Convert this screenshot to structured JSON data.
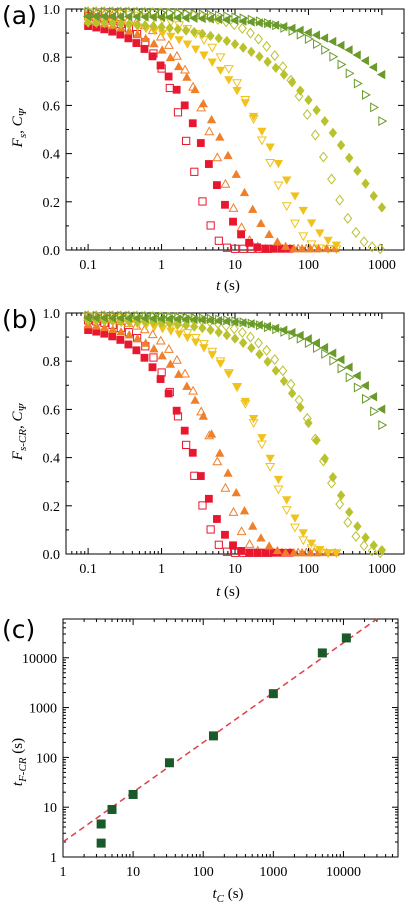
{
  "colors": {
    "red": "#e8162e",
    "orange": "#f07f2a",
    "yellow": "#f0c21d",
    "olive": "#b9c12d",
    "green": "#6a9a2a",
    "darkgreen": "#1a5a2a",
    "fitline": "#e0404a"
  },
  "chart_data": [
    {
      "type": "scatter",
      "panel_label": "(a)",
      "xlabel_italic": "t",
      "xlabel_rest": " (s)",
      "ylabel": "F_s, C_Ψ",
      "ylabel_parts": [
        "F",
        "s",
        ", C",
        "Ψ"
      ],
      "x_scale": "log",
      "xlim": [
        0.05,
        2000
      ],
      "ylim": [
        0,
        1.0
      ],
      "x_ticks": [
        "0.1",
        "1",
        "10",
        "100",
        "1000"
      ],
      "y_ticks": [
        "0.0",
        "0.2",
        "0.4",
        "0.6",
        "0.8",
        "1.0"
      ],
      "series": [
        {
          "color": "red",
          "marker": "square",
          "filled": true,
          "t_start": 0.1,
          "t_end": 55,
          "tau": 4.5,
          "beta": 1.0,
          "a": 0.95
        },
        {
          "color": "red",
          "marker": "square",
          "filled": false,
          "t_start": 0.1,
          "t_end": 28,
          "tau": 2.6,
          "beta": 1.4,
          "a": 0.98
        },
        {
          "color": "orange",
          "marker": "triangle-up",
          "filled": true,
          "t_start": 0.1,
          "t_end": 230,
          "tau": 9,
          "beta": 0.85,
          "a": 0.97
        },
        {
          "color": "orange",
          "marker": "triangle-up",
          "filled": false,
          "t_start": 0.1,
          "t_end": 120,
          "tau": 6,
          "beta": 1.2,
          "a": 0.99
        },
        {
          "color": "yellow",
          "marker": "triangle-down",
          "filled": true,
          "t_start": 0.1,
          "t_end": 240,
          "tau": 40,
          "beta": 0.75,
          "a": 0.96
        },
        {
          "color": "yellow",
          "marker": "triangle-down",
          "filled": false,
          "t_start": 0.1,
          "t_end": 240,
          "tau": 30,
          "beta": 1.0,
          "a": 0.99
        },
        {
          "color": "olive",
          "marker": "diamond",
          "filled": true,
          "t_start": 0.1,
          "t_end": 1000,
          "tau": 420,
          "beta": 0.6,
          "a": 0.95
        },
        {
          "color": "olive",
          "marker": "diamond",
          "filled": false,
          "t_start": 0.1,
          "t_end": 950,
          "tau": 170,
          "beta": 1.0,
          "a": 0.99
        },
        {
          "color": "green",
          "marker": "triangle-left",
          "filled": true,
          "t_start": 0.1,
          "t_end": 1000,
          "tau": 8000,
          "beta": 0.6,
          "a": 0.97
        },
        {
          "color": "green",
          "marker": "triangle-right",
          "filled": false,
          "t_start": 0.1,
          "t_end": 1000,
          "tau": 2000,
          "beta": 0.7,
          "a": 0.99
        }
      ]
    },
    {
      "type": "scatter",
      "panel_label": "(b)",
      "xlabel_italic": "t",
      "xlabel_rest": " (s)",
      "ylabel": "F_s-CR, C_Ψ",
      "ylabel_parts": [
        "F",
        "s-CR",
        ", C",
        "Ψ"
      ],
      "x_scale": "log",
      "xlim": [
        0.05,
        2000
      ],
      "ylim": [
        0,
        1.0
      ],
      "x_ticks": [
        "0.1",
        "1",
        "10",
        "100",
        "1000"
      ],
      "y_ticks": [
        "0.0",
        "0.2",
        "0.4",
        "0.6",
        "0.8",
        "1.0"
      ],
      "series": [
        {
          "color": "red",
          "marker": "square",
          "filled": true,
          "t_start": 0.1,
          "t_end": 55,
          "tau": 3.2,
          "beta": 1.1,
          "a": 0.95
        },
        {
          "color": "red",
          "marker": "square",
          "filled": false,
          "t_start": 0.1,
          "t_end": 28,
          "tau": 2.6,
          "beta": 1.4,
          "a": 0.98
        },
        {
          "color": "orange",
          "marker": "triangle-up",
          "filled": true,
          "t_start": 0.1,
          "t_end": 230,
          "tau": 7.5,
          "beta": 0.9,
          "a": 0.97
        },
        {
          "color": "orange",
          "marker": "triangle-up",
          "filled": false,
          "t_start": 0.1,
          "t_end": 120,
          "tau": 6,
          "beta": 1.2,
          "a": 0.99
        },
        {
          "color": "yellow",
          "marker": "triangle-down",
          "filled": true,
          "t_start": 0.1,
          "t_end": 240,
          "tau": 34,
          "beta": 0.95,
          "a": 0.97
        },
        {
          "color": "yellow",
          "marker": "triangle-down",
          "filled": false,
          "t_start": 0.1,
          "t_end": 240,
          "tau": 30,
          "beta": 1.0,
          "a": 0.99
        },
        {
          "color": "olive",
          "marker": "diamond",
          "filled": true,
          "t_start": 0.1,
          "t_end": 1000,
          "tau": 190,
          "beta": 0.85,
          "a": 0.97
        },
        {
          "color": "olive",
          "marker": "diamond",
          "filled": false,
          "t_start": 0.1,
          "t_end": 950,
          "tau": 170,
          "beta": 1.0,
          "a": 0.99
        },
        {
          "color": "green",
          "marker": "triangle-left",
          "filled": true,
          "t_start": 0.1,
          "t_end": 1000,
          "tau": 2700,
          "beta": 0.72,
          "a": 0.98
        },
        {
          "color": "green",
          "marker": "triangle-right",
          "filled": false,
          "t_start": 0.1,
          "t_end": 1000,
          "tau": 2000,
          "beta": 0.7,
          "a": 0.99
        }
      ]
    },
    {
      "type": "scatter",
      "panel_label": "(c)",
      "xlabel": "t_C (s)",
      "xlabel_parts": [
        "t",
        "C",
        " (s)"
      ],
      "ylabel": "t_F-CR (s)",
      "ylabel_parts": [
        "t",
        "F-CR",
        " (s)"
      ],
      "x_scale": "log",
      "y_scale": "log",
      "xlim": [
        1,
        60000
      ],
      "ylim": [
        1,
        60000
      ],
      "x_ticks": [
        "1",
        "10",
        "100",
        "1000",
        "10000"
      ],
      "y_ticks": [
        "1",
        "10",
        "100",
        "1000",
        "10000"
      ],
      "points": [
        {
          "x": 3.5,
          "y": 1.9
        },
        {
          "x": 3.5,
          "y": 4.6
        },
        {
          "x": 5,
          "y": 9
        },
        {
          "x": 10,
          "y": 18
        },
        {
          "x": 33,
          "y": 78
        },
        {
          "x": 140,
          "y": 270
        },
        {
          "x": 1000,
          "y": 1900
        },
        {
          "x": 5000,
          "y": 12500
        },
        {
          "x": 11000,
          "y": 25000
        }
      ],
      "fit_line": {
        "slope": 1.0,
        "intercept_factor": 2.0,
        "style": "dashed"
      }
    }
  ]
}
